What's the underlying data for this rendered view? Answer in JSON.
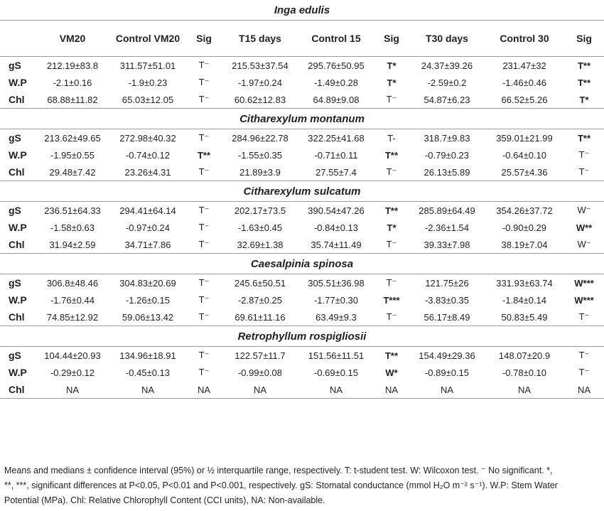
{
  "header": {
    "c1": "VM20",
    "c2": "Control VM20",
    "c3": "Sig",
    "c4": "T15 days",
    "c5": "Control 15",
    "c6": "Sig",
    "c7": "T30 days",
    "c8": "Control 30",
    "c9": "Sig"
  },
  "species": [
    {
      "name": "Inga edulis",
      "rows": [
        {
          "label": "gS",
          "cells": [
            "212.19±83.8",
            "311.57±51.01",
            "T⁻",
            "215.53±37.54",
            "295.76±50.95",
            "T*",
            "24.37±39.26",
            "231.47±32",
            "T**"
          ],
          "bold": [
            false,
            false,
            false,
            false,
            false,
            true,
            false,
            false,
            true
          ]
        },
        {
          "label": "W.P",
          "cells": [
            "-2.1±0.16",
            "-1.9±0.23",
            "T⁻",
            "-1.97±0.24",
            "-1.49±0.28",
            "T*",
            "-2.59±0.2",
            "-1.46±0.46",
            "T**"
          ],
          "bold": [
            false,
            false,
            false,
            false,
            false,
            true,
            false,
            false,
            true
          ]
        },
        {
          "label": "Chl",
          "cells": [
            "68.88±11.82",
            "65.03±12.05",
            "T⁻",
            "60.62±12.83",
            "64.89±9.08",
            "T⁻",
            "54.87±6.23",
            "66.52±5.26",
            "T*"
          ],
          "bold": [
            false,
            false,
            false,
            false,
            false,
            false,
            false,
            false,
            true
          ]
        }
      ]
    },
    {
      "name": "Citharexylum montanum",
      "rows": [
        {
          "label": "gS",
          "cells": [
            "213.62±49.65",
            "272.98±40.32",
            "T⁻",
            "284.96±22.78",
            "322.25±41.68",
            "T-",
            "318.7±9.83",
            "359.01±21.99",
            "T**"
          ],
          "bold": [
            false,
            false,
            false,
            false,
            false,
            false,
            false,
            false,
            true
          ]
        },
        {
          "label": "W.P",
          "cells": [
            "-1.95±0.55",
            "-0.74±0.12",
            "T**",
            "-1.55±0.35",
            "-0.71±0.11",
            "T**",
            "-0.79±0.23",
            "-0.64±0.10",
            "T⁻"
          ],
          "bold": [
            false,
            false,
            true,
            false,
            false,
            true,
            false,
            false,
            false
          ]
        },
        {
          "label": "Chl",
          "cells": [
            "29.48±7.42",
            "23.26±4.31",
            "T⁻",
            "21.89±3.9",
            "27.55±7.4",
            "T⁻",
            "26.13±5.89",
            "25.57±4.36",
            "T⁻"
          ],
          "bold": [
            false,
            false,
            false,
            false,
            false,
            false,
            false,
            false,
            false
          ]
        }
      ]
    },
    {
      "name": "Citharexylum sulcatum",
      "rows": [
        {
          "label": "gS",
          "cells": [
            "236.51±64.33",
            "294.41±64.14",
            "T⁻",
            "202.17±73.5",
            "390.54±47.26",
            "T**",
            "285.89±64.49",
            "354.26±37.72",
            "W⁻"
          ],
          "bold": [
            false,
            false,
            false,
            false,
            false,
            true,
            false,
            false,
            false
          ]
        },
        {
          "label": "W.P",
          "cells": [
            "-1.58±0.63",
            "-0.97±0.24",
            "T⁻",
            "-1.63±0.45",
            "-0.84±0.13",
            "T*",
            "-2.36±1.54",
            "-0.90±0.29",
            "W**"
          ],
          "bold": [
            false,
            false,
            false,
            false,
            false,
            true,
            false,
            false,
            true
          ]
        },
        {
          "label": "Chl",
          "cells": [
            "31.94±2.59",
            "34.71±7.86",
            "T⁻",
            "32.69±1.38",
            "35.74±11.49",
            "T⁻",
            "39.33±7.98",
            "38.19±7.04",
            "W⁻"
          ],
          "bold": [
            false,
            false,
            false,
            false,
            false,
            false,
            false,
            false,
            false
          ]
        }
      ]
    },
    {
      "name": "Caesalpinia spinosa",
      "rows": [
        {
          "label": "gS",
          "cells": [
            "306.8±48.46",
            "304.83±20.69",
            "T⁻",
            "245.6±50.51",
            "305.51±36.98",
            "T⁻",
            "121.75±26",
            "331.93±63.74",
            "W***"
          ],
          "bold": [
            false,
            false,
            false,
            false,
            false,
            false,
            false,
            false,
            true
          ]
        },
        {
          "label": "W.P",
          "cells": [
            "-1.76±0.44",
            "-1.26±0.15",
            "T⁻",
            "-2.87±0.25",
            "-1.77±0.30",
            "T***",
            "-3.83±0.35",
            "-1.84±0.14",
            "W***"
          ],
          "bold": [
            false,
            false,
            false,
            false,
            false,
            true,
            false,
            false,
            true
          ]
        },
        {
          "label": "Chl",
          "cells": [
            "74.85±12.92",
            "59.06±13.42",
            "T⁻",
            "69.61±11.16",
            "63.49±9.3",
            "T⁻",
            "56.17±8.49",
            "50.83±5.49",
            "T⁻"
          ],
          "bold": [
            false,
            false,
            false,
            false,
            false,
            false,
            false,
            false,
            false
          ]
        }
      ]
    },
    {
      "name": "Retrophyllum rospigliosii",
      "rows": [
        {
          "label": "gS",
          "cells": [
            "104.44±20.93",
            "134.96±18.91",
            "T⁻",
            "122.57±11.7",
            "151.56±11.51",
            "T**",
            "154.49±29.36",
            "148.07±20.9",
            "T⁻"
          ],
          "bold": [
            false,
            false,
            false,
            false,
            false,
            true,
            false,
            false,
            false
          ]
        },
        {
          "label": "W.P",
          "cells": [
            "-0.29±0.12",
            "-0.45±0.13",
            "T⁻",
            "-0.99±0.08",
            "-0.69±0.15",
            "W*",
            "-0.89±0.15",
            "-0.78±0.10",
            "T⁻"
          ],
          "bold": [
            false,
            false,
            false,
            false,
            false,
            true,
            false,
            false,
            false
          ]
        },
        {
          "label": "Chl",
          "cells": [
            "NA",
            "NA",
            "NA",
            "NA",
            "NA",
            "NA",
            "NA",
            "NA",
            "NA"
          ],
          "bold": [
            false,
            false,
            false,
            false,
            false,
            false,
            false,
            false,
            false
          ]
        }
      ]
    }
  ],
  "footnote": {
    "line1": "Means and medians ± confidence interval (95%) or ½ interquartile range, respectively. T: t-student test. W: Wilcoxon test. ⁻ No significant. *,",
    "line2": "**, ***, significant differences at P<0.05, P<0.01 and P<0.001, respectively. gS: Stomatal conductance (mmol H₂O m⁻² s⁻¹). W.P: Stem Water",
    "line3": "Potential (MPa). Chl: Relative Chlorophyll Content (CCI units), NA: Non-available."
  }
}
